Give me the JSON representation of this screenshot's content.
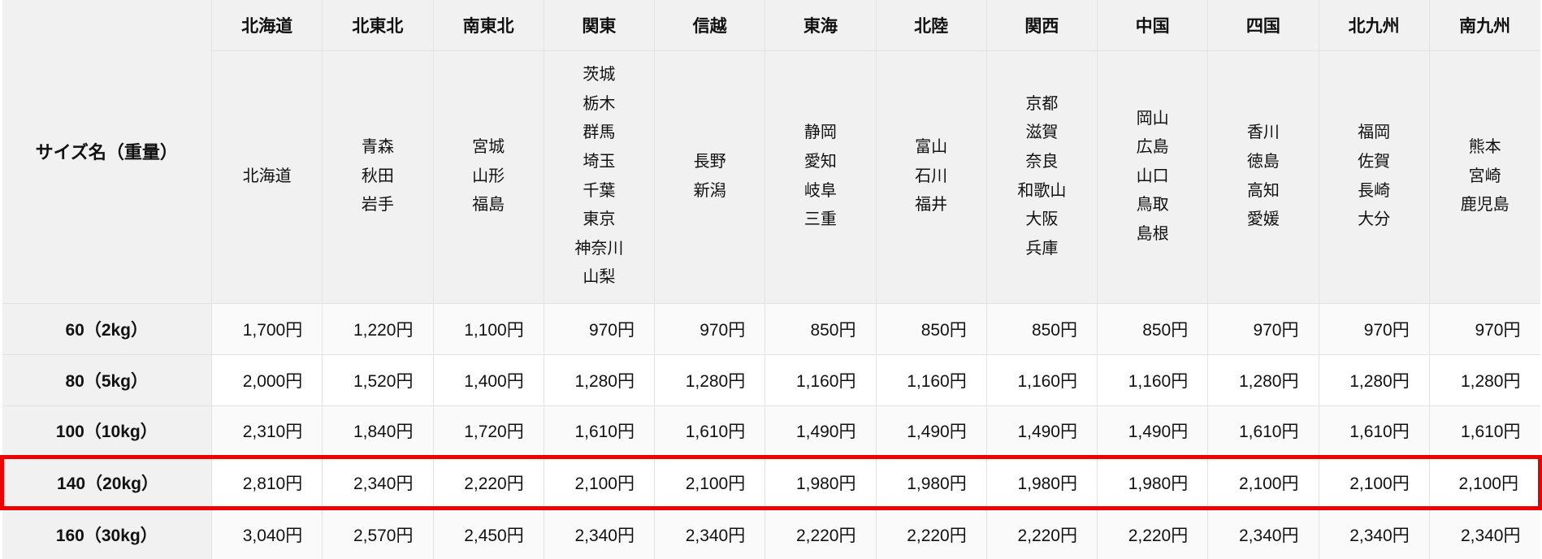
{
  "table": {
    "corner_label": "サイズ名（重量）",
    "regions": [
      {
        "name": "北海道",
        "prefectures": [
          "北海道"
        ]
      },
      {
        "name": "北東北",
        "prefectures": [
          "青森",
          "秋田",
          "岩手"
        ]
      },
      {
        "name": "南東北",
        "prefectures": [
          "宮城",
          "山形",
          "福島"
        ]
      },
      {
        "name": "関東",
        "prefectures": [
          "茨城",
          "栃木",
          "群馬",
          "埼玉",
          "千葉",
          "東京",
          "神奈川",
          "山梨"
        ]
      },
      {
        "name": "信越",
        "prefectures": [
          "長野",
          "新潟"
        ]
      },
      {
        "name": "東海",
        "prefectures": [
          "静岡",
          "愛知",
          "岐阜",
          "三重"
        ]
      },
      {
        "name": "北陸",
        "prefectures": [
          "富山",
          "石川",
          "福井"
        ]
      },
      {
        "name": "関西",
        "prefectures": [
          "京都",
          "滋賀",
          "奈良",
          "和歌山",
          "大阪",
          "兵庫"
        ]
      },
      {
        "name": "中国",
        "prefectures": [
          "岡山",
          "広島",
          "山口",
          "鳥取",
          "島根"
        ]
      },
      {
        "name": "四国",
        "prefectures": [
          "香川",
          "徳島",
          "高知",
          "愛媛"
        ]
      },
      {
        "name": "北九州",
        "prefectures": [
          "福岡",
          "佐賀",
          "長崎",
          "大分"
        ]
      },
      {
        "name": "南九州",
        "prefectures": [
          "熊本",
          "宮崎",
          "鹿児島"
        ]
      }
    ],
    "rows": [
      {
        "label": "60（2kg）",
        "prices": [
          "1,700円",
          "1,220円",
          "1,100円",
          "970円",
          "970円",
          "850円",
          "850円",
          "850円",
          "850円",
          "970円",
          "970円",
          "970円"
        ]
      },
      {
        "label": "80（5kg）",
        "prices": [
          "2,000円",
          "1,520円",
          "1,400円",
          "1,280円",
          "1,280円",
          "1,160円",
          "1,160円",
          "1,160円",
          "1,160円",
          "1,280円",
          "1,280円",
          "1,280円"
        ]
      },
      {
        "label": "100（10kg）",
        "prices": [
          "2,310円",
          "1,840円",
          "1,720円",
          "1,610円",
          "1,610円",
          "1,490円",
          "1,490円",
          "1,490円",
          "1,490円",
          "1,610円",
          "1,610円",
          "1,610円"
        ]
      },
      {
        "label": "140（20kg）",
        "prices": [
          "2,810円",
          "2,340円",
          "2,220円",
          "2,100円",
          "2,100円",
          "1,980円",
          "1,980円",
          "1,980円",
          "1,980円",
          "2,100円",
          "2,100円",
          "2,100円"
        ]
      },
      {
        "label": "160（30kg）",
        "prices": [
          "3,040円",
          "2,570円",
          "2,450円",
          "2,340円",
          "2,340円",
          "2,220円",
          "2,220円",
          "2,220円",
          "2,220円",
          "2,340円",
          "2,340円",
          "2,340円"
        ]
      }
    ],
    "highlight_row_index": 3,
    "highlighted_row_label": "140（20kg）",
    "colors": {
      "header_bg": "#f1f1f1",
      "stripe_bg": "#fafafa",
      "row_bg": "#ffffff",
      "border": "#e2e2e2",
      "highlight_border": "#ee0000",
      "text": "#111111"
    }
  }
}
